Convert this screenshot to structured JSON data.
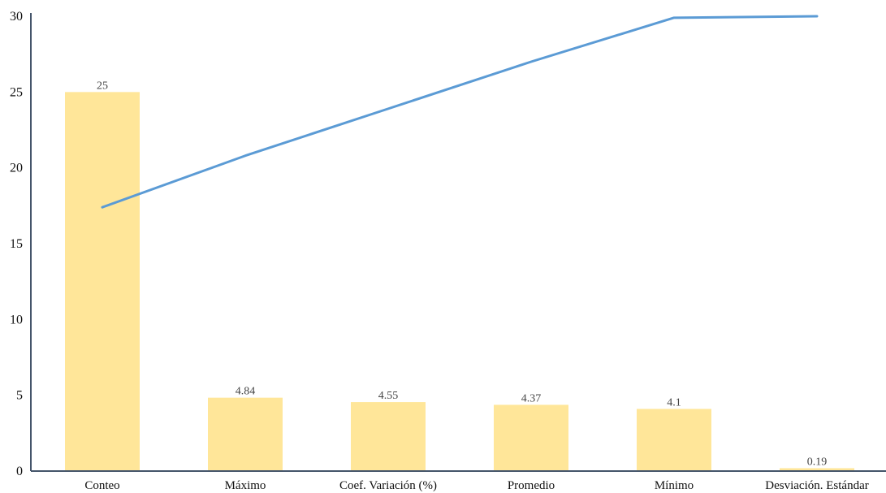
{
  "chart_data": {
    "type": "bar",
    "categories": [
      "Conteo",
      "Máximo",
      "Coef. Variación (%)",
      "Promedio",
      "Mínimo",
      "Desviación. Estándar"
    ],
    "series": [
      {
        "type": "bar",
        "values": [
          25,
          4.84,
          4.55,
          4.37,
          4.1,
          0.19
        ],
        "data_labels": [
          "25",
          "4.84",
          "4.55",
          "4.37",
          "4.1",
          "0.19"
        ]
      },
      {
        "type": "line",
        "values": [
          17.4,
          20.8,
          23.9,
          27.0,
          29.9,
          30.0
        ]
      }
    ],
    "yticks": [
      "0",
      "5",
      "10",
      "15",
      "20",
      "25",
      "30"
    ],
    "ylim": [
      0,
      30
    ],
    "title": "",
    "xlabel": "",
    "ylabel": "",
    "grid": false,
    "legend": "none",
    "colors": {
      "bar": "#FFE699",
      "line": "#5B9BD5",
      "axis": "#44546A"
    }
  }
}
